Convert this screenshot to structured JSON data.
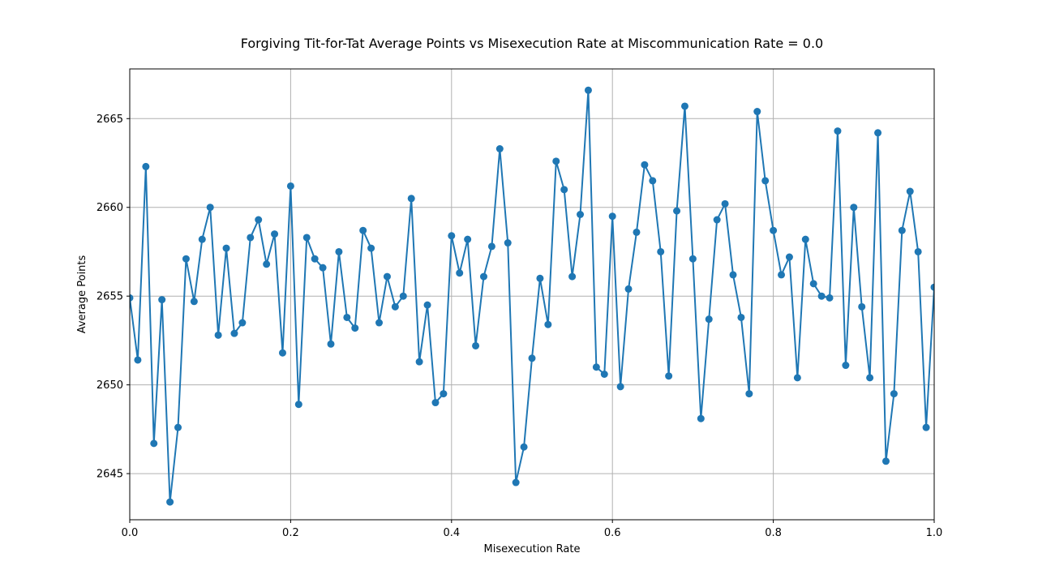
{
  "chart_data": {
    "type": "line",
    "title": "Forgiving Tit-for-Tat Average Points vs Misexecution Rate at Miscommunication Rate = 0.0",
    "xlabel": "Misexecution Rate",
    "ylabel": "Average Points",
    "xlim": [
      0.0,
      1.0
    ],
    "ylim": [
      2642.4,
      2667.8
    ],
    "grid": true,
    "line_color": "#1f77b4",
    "marker": "circle",
    "xticks": [
      "0.0",
      "0.2",
      "0.4",
      "0.6",
      "0.8",
      "1.0"
    ],
    "xtick_values": [
      0.0,
      0.2,
      0.4,
      0.6,
      0.8,
      1.0
    ],
    "yticks": [
      "2645",
      "2650",
      "2655",
      "2660",
      "2665"
    ],
    "ytick_values": [
      2645,
      2650,
      2655,
      2660,
      2665
    ],
    "series": [
      {
        "x": [
          0.0,
          0.01,
          0.02,
          0.03,
          0.04,
          0.05,
          0.06,
          0.07,
          0.08,
          0.09,
          0.1,
          0.11,
          0.12,
          0.13,
          0.14,
          0.15,
          0.16,
          0.17,
          0.18,
          0.19,
          0.2,
          0.21,
          0.22,
          0.23,
          0.24,
          0.25,
          0.26,
          0.27,
          0.28,
          0.29,
          0.3,
          0.31,
          0.32,
          0.33,
          0.34,
          0.35,
          0.36,
          0.37,
          0.38,
          0.39,
          0.4,
          0.41,
          0.42,
          0.43,
          0.44,
          0.45,
          0.46,
          0.47,
          0.48,
          0.49,
          0.5,
          0.51,
          0.52,
          0.53,
          0.54,
          0.55,
          0.56,
          0.57,
          0.58,
          0.59,
          0.6,
          0.61,
          0.62,
          0.63,
          0.64,
          0.65,
          0.66,
          0.67,
          0.68,
          0.69,
          0.7,
          0.71,
          0.72,
          0.73,
          0.74,
          0.75,
          0.76,
          0.77,
          0.78,
          0.79,
          0.8,
          0.81,
          0.82,
          0.83,
          0.84,
          0.85,
          0.86,
          0.87,
          0.88,
          0.89,
          0.9,
          0.91,
          0.92,
          0.93,
          0.94,
          0.95,
          0.96,
          0.97,
          0.98,
          0.99,
          1.0
        ],
        "y": [
          2654.9,
          2651.4,
          2662.3,
          2646.7,
          2654.8,
          2643.4,
          2647.6,
          2657.1,
          2654.7,
          2658.2,
          2660.0,
          2652.8,
          2657.7,
          2652.9,
          2653.5,
          2658.3,
          2659.3,
          2656.8,
          2658.5,
          2651.8,
          2661.2,
          2648.9,
          2658.3,
          2657.1,
          2656.6,
          2652.3,
          2657.5,
          2653.8,
          2653.2,
          2658.7,
          2657.7,
          2653.5,
          2656.1,
          2654.4,
          2655.0,
          2660.5,
          2651.3,
          2654.5,
          2649.0,
          2649.5,
          2658.4,
          2656.3,
          2658.2,
          2652.2,
          2656.1,
          2657.8,
          2663.3,
          2658.0,
          2644.5,
          2646.5,
          2651.5,
          2656.0,
          2653.4,
          2662.6,
          2661.0,
          2656.1,
          2659.6,
          2666.6,
          2651.0,
          2650.6,
          2659.5,
          2649.9,
          2655.4,
          2658.6,
          2662.4,
          2661.5,
          2657.5,
          2650.5,
          2659.8,
          2665.7,
          2657.1,
          2648.1,
          2653.7,
          2659.3,
          2660.2,
          2656.2,
          2653.8,
          2649.5,
          2665.4,
          2661.5,
          2658.7,
          2656.2,
          2657.2,
          2650.4,
          2658.2,
          2655.7,
          2655.0,
          2654.9,
          2664.3,
          2651.1,
          2660.0,
          2654.4,
          2650.4,
          2664.2,
          2645.7,
          2649.5,
          2658.7,
          2660.9,
          2657.5,
          2647.6,
          2655.5
        ]
      }
    ]
  }
}
